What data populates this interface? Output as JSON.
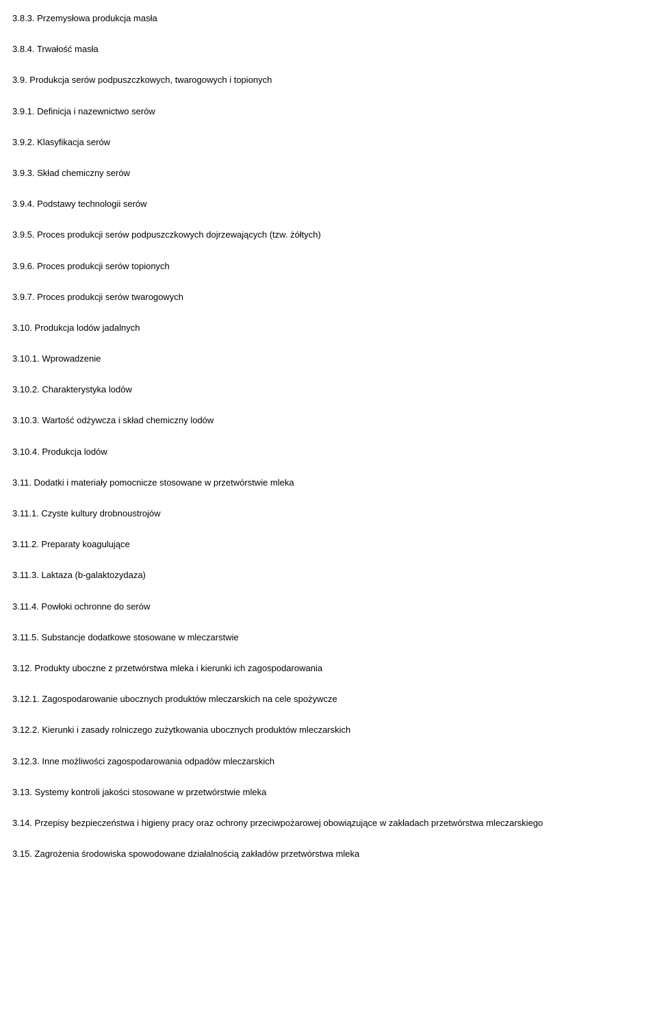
{
  "entries": [
    {
      "text": "3.8.3. Przemysłowa produkcja masła"
    },
    {
      "text": "3.8.4. Trwałość masła"
    },
    {
      "text": "3.9. Produkcja serów podpuszczkowych, twarogowych i topionych"
    },
    {
      "text": "3.9.1. Definicja i nazewnictwo serów"
    },
    {
      "text": "3.9.2. Klasyfikacja serów"
    },
    {
      "text": "3.9.3. Skład chemiczny serów"
    },
    {
      "text": "3.9.4. Podstawy technologii serów"
    },
    {
      "text": "3.9.5. Proces produkcji serów podpuszczkowych dojrzewających (tzw. żółtych)"
    },
    {
      "text": "3.9.6. Proces produkcji serów topionych"
    },
    {
      "text": "3.9.7. Proces produkcji serów twarogowych"
    },
    {
      "text": "3.10. Produkcja lodów jadalnych"
    },
    {
      "text": "3.10.1. Wprowadzenie"
    },
    {
      "text": "3.10.2. Charakterystyka lodów"
    },
    {
      "text": "3.10.3. Wartość odżywcza i skład chemiczny lodów"
    },
    {
      "text": "3.10.4. Produkcja lodów"
    },
    {
      "text": "3.11. Dodatki i materiały pomocnicze stosowane w przetwórstwie mleka"
    },
    {
      "text": "3.11.1. Czyste kultury drobnoustrojów"
    },
    {
      "text": "3.11.2. Preparaty koagulujące"
    },
    {
      "text": "3.11.3. Laktaza (b-galaktozydaza)"
    },
    {
      "text": "3.11.4. Powłoki ochronne do serów"
    },
    {
      "text": "3.11.5. Substancje dodatkowe stosowane w mleczarstwie"
    },
    {
      "text": "3.12. Produkty uboczne z przetwórstwa mleka i kierunki ich zagospodarowania"
    },
    {
      "text": "3.12.1. Zagospodarowanie ubocznych produktów mleczarskich na cele spożywcze"
    },
    {
      "text": "3.12.2. Kierunki i zasady rolniczego zużytkowania ubocznych produktów mleczarskich"
    },
    {
      "text": "3.12.3. Inne możliwości zagospodarowania odpadów mleczarskich"
    },
    {
      "text": "3.13. Systemy kontroli jakości stosowane w przetwórstwie mleka"
    },
    {
      "text": "3.14. Przepisy bezpieczeństwa i higieny pracy oraz ochrony przeciwpożarowej obowiązujące w zakładach przetwórstwa mleczarskiego"
    },
    {
      "text": "3.15. Zagrożenia środowiska spowodowane działalnością zakładów przetwórstwa mleka"
    }
  ]
}
